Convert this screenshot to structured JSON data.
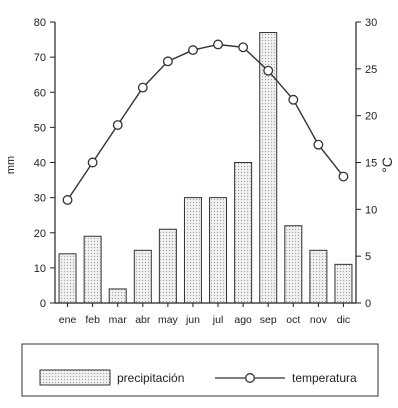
{
  "chart_data": {
    "type": "bar",
    "categories": [
      "ene",
      "feb",
      "mar",
      "abr",
      "may",
      "jun",
      "jul",
      "ago",
      "sep",
      "oct",
      "nov",
      "dic"
    ],
    "series": [
      {
        "name": "precipitación",
        "type": "bar",
        "axis": "left",
        "values": [
          14,
          19,
          4,
          15,
          21,
          30,
          30,
          40,
          77,
          22,
          15,
          11
        ]
      },
      {
        "name": "temperatura",
        "type": "line",
        "axis": "right",
        "values": [
          11,
          15,
          19,
          23,
          25.8,
          27,
          27.6,
          27.3,
          24.8,
          21.7,
          16.9,
          13.5
        ]
      }
    ],
    "ylabel": "mm",
    "y2label": "°C",
    "ylim": [
      0,
      80
    ],
    "y2lim": [
      0,
      30
    ],
    "yticks": [
      0,
      10,
      20,
      30,
      40,
      50,
      60,
      70,
      80
    ],
    "y2ticks": [
      0,
      5,
      10,
      15,
      20,
      25,
      30
    ],
    "grid": false,
    "legend_position": "bottom"
  },
  "colors": {
    "axis": "#222222",
    "bar_fill": "#e2e2e2",
    "bar_stroke": "#333333",
    "line": "#333333",
    "marker_fill": "#ffffff"
  }
}
